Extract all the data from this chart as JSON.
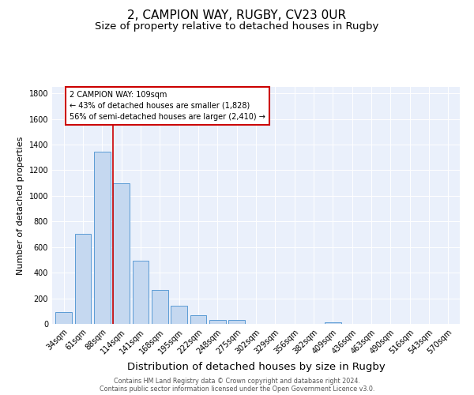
{
  "title1": "2, CAMPION WAY, RUGBY, CV23 0UR",
  "title2": "Size of property relative to detached houses in Rugby",
  "xlabel": "Distribution of detached houses by size in Rugby",
  "ylabel": "Number of detached properties",
  "categories": [
    "34sqm",
    "61sqm",
    "88sqm",
    "114sqm",
    "141sqm",
    "168sqm",
    "195sqm",
    "222sqm",
    "248sqm",
    "275sqm",
    "302sqm",
    "329sqm",
    "356sqm",
    "382sqm",
    "409sqm",
    "436sqm",
    "463sqm",
    "490sqm",
    "516sqm",
    "543sqm",
    "570sqm"
  ],
  "values": [
    95,
    700,
    1345,
    1095,
    495,
    265,
    140,
    68,
    30,
    30,
    0,
    0,
    0,
    0,
    12,
    0,
    0,
    0,
    0,
    0,
    0
  ],
  "bar_color": "#c5d8f0",
  "bar_edge_color": "#5b9bd5",
  "marker_line_color": "#cc0000",
  "annotation_text": "2 CAMPION WAY: 109sqm\n← 43% of detached houses are smaller (1,828)\n56% of semi-detached houses are larger (2,410) →",
  "annotation_box_color": "white",
  "annotation_box_edge_color": "#cc0000",
  "footer1": "Contains HM Land Registry data © Crown copyright and database right 2024.",
  "footer2": "Contains public sector information licensed under the Open Government Licence v3.0.",
  "bg_color": "#eaf0fb",
  "ylim": [
    0,
    1850
  ],
  "yticks": [
    0,
    200,
    400,
    600,
    800,
    1000,
    1200,
    1400,
    1600,
    1800
  ],
  "title1_fontsize": 11,
  "title2_fontsize": 9.5,
  "xlabel_fontsize": 9.5,
  "ylabel_fontsize": 8,
  "tick_fontsize": 7,
  "footer_fontsize": 5.8,
  "ann_fontsize": 7
}
